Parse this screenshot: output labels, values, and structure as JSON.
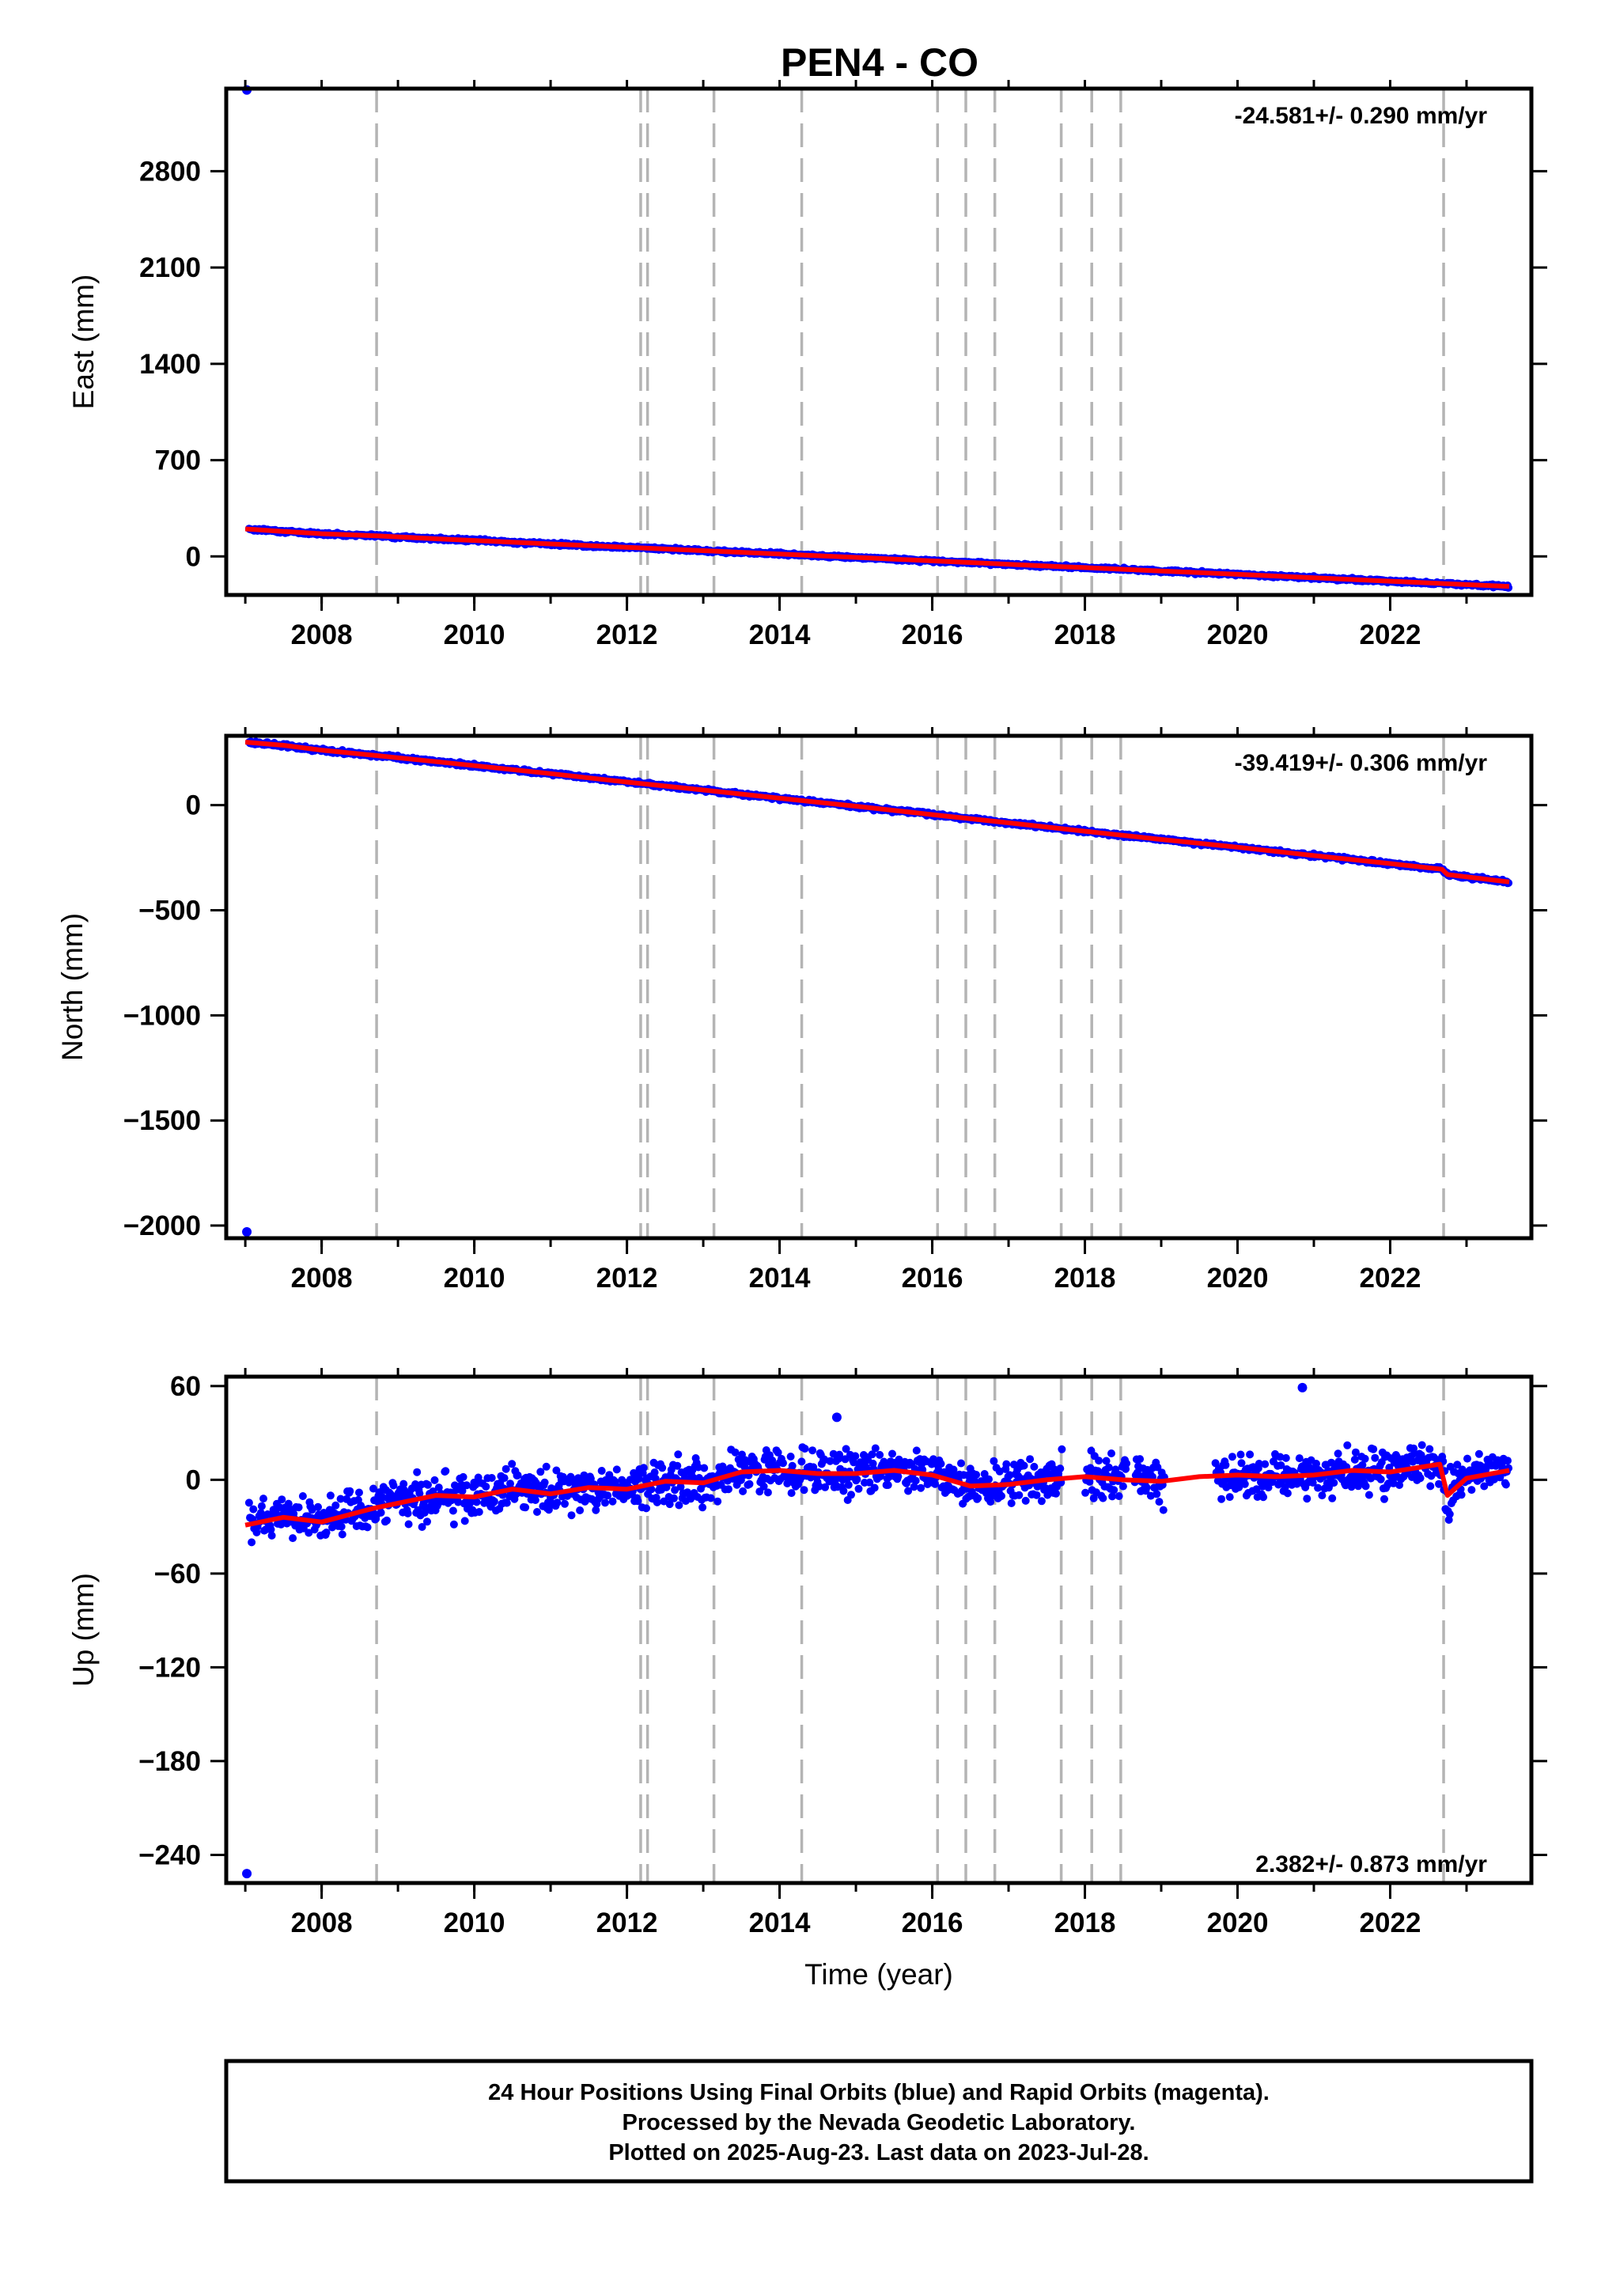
{
  "title": "PEN4 - CO",
  "colors": {
    "final_orbits": "#0000ff",
    "model": "#ff0000",
    "event_lines": "#b4b4b4",
    "frame": "#000000"
  },
  "event_lines_x": [
    2008.72,
    2012.18,
    2012.27,
    2013.14,
    2014.29,
    2016.07,
    2016.44,
    2016.82,
    2017.69,
    2018.09,
    2018.47,
    2022.7
  ],
  "chart_data": [
    {
      "type": "scatter",
      "component": "east",
      "ylabel": "East (mm)",
      "xlabel": "",
      "xlim": [
        2006.75,
        2023.85
      ],
      "ylim": [
        -280,
        3400
      ],
      "x_ticks": [
        2008,
        2010,
        2012,
        2014,
        2016,
        2018,
        2020,
        2022
      ],
      "y_ticks": [
        0,
        700,
        1400,
        2100,
        2800
      ],
      "rate_label": "-24.581+/- 0.290 mm/yr",
      "rate_position": "top-right",
      "grid": false,
      "series": [
        {
          "points": [
            [
              2007.0,
              200
            ],
            [
              2007.5,
              182
            ],
            [
              2008.0,
              165
            ],
            [
              2008.72,
              150
            ],
            [
              2009.5,
              128
            ],
            [
              2010.0,
              116
            ],
            [
              2011.0,
              91
            ],
            [
              2012.0,
              67
            ],
            [
              2013.0,
              42
            ],
            [
              2014.0,
              17
            ],
            [
              2015.0,
              -7
            ],
            [
              2016.0,
              -32
            ],
            [
              2017.0,
              -57
            ],
            [
              2017.69,
              -74
            ],
            [
              2018.0,
              -81
            ],
            [
              2019.0,
              -106
            ],
            [
              2020.0,
              -130
            ],
            [
              2021.0,
              -155
            ],
            [
              2022.0,
              -180
            ],
            [
              2022.7,
              -197
            ],
            [
              2023.56,
              -218
            ]
          ]
        }
      ],
      "outliers": [
        [
          2007.02,
          3390
        ]
      ]
    },
    {
      "type": "scatter",
      "component": "north",
      "ylabel": "North (mm)",
      "xlabel": "",
      "xlim": [
        2006.75,
        2023.85
      ],
      "ylim": [
        -2060,
        330
      ],
      "x_ticks": [
        2008,
        2010,
        2012,
        2014,
        2016,
        2018,
        2020,
        2022
      ],
      "y_ticks": [
        0,
        -500,
        -1000,
        -1500,
        -2000
      ],
      "rate_label": "-39.419+/- 0.306 mm/yr",
      "rate_position": "top-right",
      "grid": false,
      "series": [
        {
          "points": [
            [
              2007.0,
              300
            ],
            [
              2007.5,
              285
            ],
            [
              2008.0,
              262
            ],
            [
              2008.72,
              236
            ],
            [
              2009.5,
              207
            ],
            [
              2010.0,
              188
            ],
            [
              2011.0,
              150
            ],
            [
              2012.0,
              110
            ],
            [
              2013.0,
              72
            ],
            [
              2014.0,
              33
            ],
            [
              2015.0,
              -5
            ],
            [
              2016.0,
              -45
            ],
            [
              2017.0,
              -84
            ],
            [
              2018.0,
              -124
            ],
            [
              2019.0,
              -163
            ],
            [
              2020.0,
              -200
            ],
            [
              2021.0,
              -240
            ],
            [
              2022.0,
              -278
            ],
            [
              2022.68,
              -305
            ],
            [
              2022.75,
              -330
            ],
            [
              2023.56,
              -365
            ]
          ]
        }
      ],
      "outliers": [
        [
          2007.02,
          -2030
        ]
      ]
    },
    {
      "type": "scatter",
      "component": "up",
      "ylabel": "Up (mm)",
      "xlabel": "Time (year)",
      "xlim": [
        2006.75,
        2023.85
      ],
      "ylim": [
        -258,
        66
      ],
      "x_ticks": [
        2008,
        2010,
        2012,
        2014,
        2016,
        2018,
        2020,
        2022
      ],
      "y_ticks": [
        60,
        0,
        -60,
        -120,
        -180,
        -240
      ],
      "rate_label": "2.382+/- 0.873 mm/yr",
      "rate_position": "bottom-right",
      "grid": false,
      "series": [
        {
          "points": [
            [
              2007.0,
              -29
            ],
            [
              2007.5,
              -24
            ],
            [
              2008.0,
              -27
            ],
            [
              2008.7,
              -18
            ],
            [
              2009.0,
              -15
            ],
            [
              2009.5,
              -10
            ],
            [
              2010.0,
              -11
            ],
            [
              2010.5,
              -6
            ],
            [
              2011.0,
              -9
            ],
            [
              2011.5,
              -5
            ],
            [
              2012.0,
              -6
            ],
            [
              2012.5,
              -1
            ],
            [
              2013.0,
              -2
            ],
            [
              2013.5,
              5
            ],
            [
              2014.0,
              6
            ],
            [
              2014.5,
              4
            ],
            [
              2015.0,
              4
            ],
            [
              2015.5,
              6
            ],
            [
              2016.0,
              3
            ],
            [
              2016.5,
              -4
            ],
            [
              2017.0,
              -3
            ],
            [
              2017.5,
              0
            ],
            [
              2018.0,
              2
            ],
            [
              2018.5,
              0
            ],
            [
              2019.0,
              -1
            ],
            [
              2019.5,
              2
            ],
            [
              2020.0,
              3
            ],
            [
              2020.5,
              2
            ],
            [
              2021.0,
              3
            ],
            [
              2021.5,
              6
            ],
            [
              2022.0,
              5
            ],
            [
              2022.65,
              10
            ],
            [
              2022.75,
              -10
            ],
            [
              2023.0,
              1
            ],
            [
              2023.56,
              6
            ]
          ]
        }
      ],
      "outliers": [
        [
          2007.02,
          -252
        ],
        [
          2014.75,
          40
        ],
        [
          2020.85,
          59
        ]
      ]
    }
  ],
  "footer": {
    "line1": "24 Hour Positions Using Final Orbits (blue) and Rapid Orbits (magenta).",
    "line2": "Processed by the Nevada Geodetic Laboratory.",
    "line3": "Plotted on 2025-Aug-23. Last data on 2023-Jul-28."
  }
}
